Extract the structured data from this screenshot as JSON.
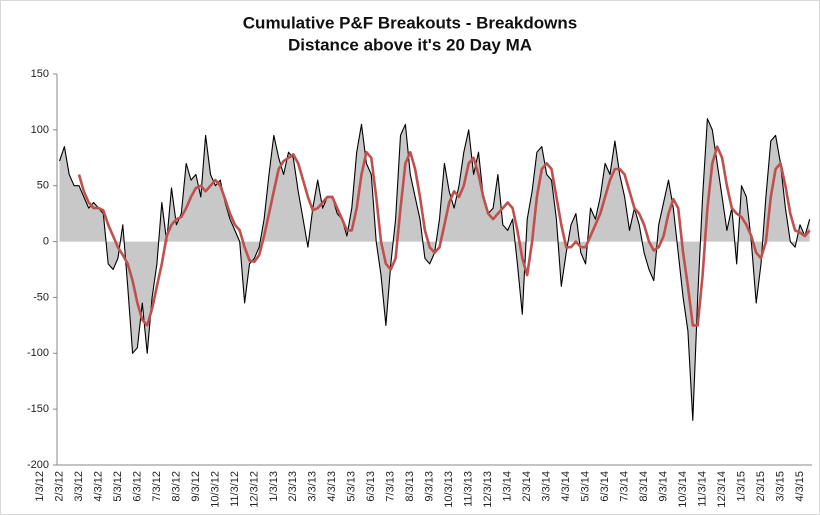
{
  "chart_data": {
    "type": "area",
    "title": "Cumulative P&F Breakouts - Breakdowns",
    "subtitle": "Distance above it's 20 Day MA",
    "categories": [
      "1/3/12",
      null,
      null,
      null,
      "2/3/12",
      null,
      null,
      null,
      "3/3/12",
      null,
      null,
      null,
      "4/3/12",
      null,
      null,
      null,
      "5/3/12",
      null,
      null,
      null,
      "6/3/12",
      null,
      null,
      null,
      "7/3/12",
      null,
      null,
      null,
      "8/3/12",
      null,
      null,
      null,
      "9/3/12",
      null,
      null,
      null,
      "10/3/12",
      null,
      null,
      null,
      "11/3/12",
      null,
      null,
      null,
      "12/3/12",
      null,
      null,
      null,
      "1/3/13",
      null,
      null,
      null,
      "2/3/13",
      null,
      null,
      null,
      "3/3/13",
      null,
      null,
      null,
      "4/3/13",
      null,
      null,
      null,
      "5/3/13",
      null,
      null,
      null,
      "6/3/13",
      null,
      null,
      null,
      "7/3/13",
      null,
      null,
      null,
      "8/3/13",
      null,
      null,
      null,
      "9/3/13",
      null,
      null,
      null,
      "10/3/13",
      null,
      null,
      null,
      "11/3/13",
      null,
      null,
      null,
      "12/3/13",
      null,
      null,
      null,
      "1/3/14",
      null,
      null,
      null,
      "2/3/14",
      null,
      null,
      null,
      "3/3/14",
      null,
      null,
      null,
      "4/3/14",
      null,
      null,
      null,
      "5/3/14",
      null,
      null,
      null,
      "6/3/14",
      null,
      null,
      null,
      "7/3/14",
      null,
      null,
      null,
      "8/3/14",
      null,
      null,
      null,
      "9/3/14",
      null,
      null,
      null,
      "10/3/14",
      null,
      null,
      null,
      "11/3/14",
      null,
      null,
      null,
      "12/3/14",
      null,
      null,
      null,
      "1/3/15",
      null,
      null,
      null,
      "2/3/15",
      null,
      null,
      null,
      "3/3/15",
      null,
      null,
      null,
      "4/3/15",
      null,
      null
    ],
    "series": [
      {
        "color": "#000000",
        "fill": "#c8c8c8",
        "values": [
          null,
          null,
          null,
          null,
          72,
          85,
          60,
          50,
          50,
          40,
          30,
          35,
          30,
          25,
          -20,
          -25,
          -15,
          15,
          -40,
          -100,
          -95,
          -55,
          -100,
          -50,
          -20,
          35,
          0,
          48,
          15,
          25,
          70,
          55,
          60,
          40,
          95,
          60,
          50,
          55,
          35,
          20,
          10,
          0,
          -55,
          -20,
          -15,
          -5,
          20,
          60,
          95,
          75,
          60,
          80,
          75,
          45,
          20,
          -5,
          30,
          55,
          30,
          40,
          40,
          25,
          20,
          5,
          30,
          80,
          105,
          70,
          60,
          0,
          -30,
          -75,
          -20,
          20,
          95,
          105,
          60,
          40,
          20,
          -15,
          -20,
          -10,
          20,
          70,
          45,
          30,
          50,
          80,
          100,
          60,
          80,
          40,
          25,
          30,
          60,
          15,
          10,
          20,
          -20,
          -65,
          20,
          45,
          80,
          85,
          60,
          55,
          20,
          -40,
          -10,
          15,
          25,
          -10,
          -20,
          30,
          20,
          40,
          70,
          60,
          90,
          60,
          40,
          10,
          30,
          15,
          -10,
          -25,
          -35,
          15,
          35,
          55,
          30,
          -10,
          -50,
          -80,
          -160,
          -50,
          40,
          110,
          100,
          70,
          40,
          10,
          30,
          -20,
          50,
          40,
          0,
          -55,
          -20,
          40,
          90,
          95,
          70,
          30,
          0,
          -5,
          15,
          5,
          20
        ]
      },
      {
        "color": "#c0504d",
        "values": [
          null,
          null,
          null,
          null,
          null,
          null,
          null,
          null,
          60,
          45,
          35,
          30,
          30,
          28,
          15,
          5,
          -5,
          -12,
          -20,
          -35,
          -55,
          -70,
          -75,
          -60,
          -40,
          -20,
          5,
          15,
          20,
          22,
          30,
          40,
          48,
          50,
          45,
          50,
          55,
          50,
          38,
          25,
          15,
          10,
          -5,
          -17,
          -18,
          -12,
          5,
          25,
          45,
          65,
          72,
          75,
          78,
          70,
          55,
          40,
          28,
          30,
          35,
          40,
          40,
          30,
          20,
          10,
          10,
          30,
          60,
          80,
          75,
          40,
          0,
          -20,
          -25,
          -15,
          30,
          70,
          80,
          65,
          40,
          10,
          -5,
          -10,
          -5,
          15,
          35,
          45,
          40,
          50,
          70,
          75,
          60,
          40,
          25,
          20,
          25,
          30,
          35,
          30,
          10,
          -15,
          -30,
          0,
          40,
          65,
          70,
          65,
          40,
          15,
          -5,
          -5,
          0,
          -5,
          -5,
          5,
          15,
          25,
          40,
          55,
          65,
          65,
          60,
          45,
          30,
          25,
          15,
          0,
          -8,
          -5,
          5,
          25,
          38,
          30,
          -10,
          -40,
          -75,
          -75,
          -30,
          30,
          70,
          85,
          75,
          50,
          30,
          25,
          22,
          15,
          5,
          -10,
          -15,
          0,
          40,
          65,
          70,
          50,
          25,
          10,
          8,
          5,
          10
        ]
      }
    ],
    "ylim": [
      -200,
      150
    ],
    "yticks": [
      -200,
      -150,
      -100,
      -50,
      0,
      50,
      100,
      150
    ],
    "grid": false
  }
}
